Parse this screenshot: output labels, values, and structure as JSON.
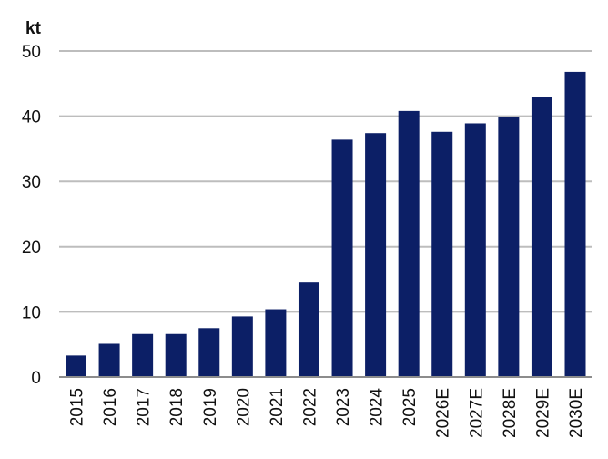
{
  "chart_data": {
    "type": "bar",
    "title": "",
    "ylabel": "kt",
    "xlabel": "",
    "ylim": [
      0,
      50
    ],
    "yticks": [
      0,
      10,
      20,
      30,
      40,
      50
    ],
    "grid": true,
    "legend": "none",
    "bar_color": "#0c1f66",
    "categories": [
      "2015",
      "2016",
      "2017",
      "2018",
      "2019",
      "2020",
      "2021",
      "2022",
      "2023",
      "2024",
      "2025",
      "2026E",
      "2027E",
      "2028E",
      "2029E",
      "2030E"
    ],
    "values": [
      3.3,
      5.1,
      6.6,
      6.6,
      7.5,
      9.3,
      10.4,
      14.5,
      36.4,
      37.4,
      40.8,
      37.6,
      38.9,
      39.9,
      43.0,
      46.8
    ]
  }
}
